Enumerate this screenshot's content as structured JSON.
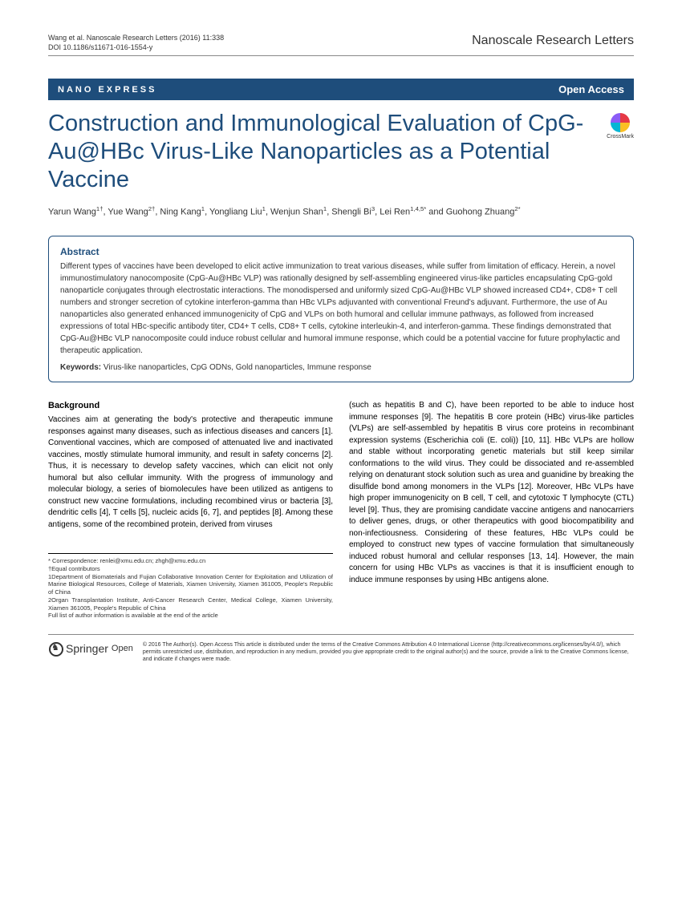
{
  "header": {
    "citation_line1": "Wang et al. Nanoscale Research Letters  (2016) 11:338",
    "citation_line2": "DOI 10.1186/s11671-016-1554-y",
    "journal": "Nanoscale Research Letters"
  },
  "banner": {
    "category": "NANO EXPRESS",
    "access": "Open Access"
  },
  "crossmark": "CrossMark",
  "title": "Construction and Immunological Evaluation of CpG-Au@HBc Virus-Like Nanoparticles as a Potential Vaccine",
  "authors_html": "Yarun Wang<sup>1†</sup>, Yue Wang<sup>2†</sup>, Ning Kang<sup>1</sup>, Yongliang Liu<sup>1</sup>, Wenjun Shan<sup>1</sup>, Shengli Bi<sup>3</sup>, Lei Ren<sup>1,4,5*</sup> and Guohong Zhuang<sup>2*</sup>",
  "abstract": {
    "heading": "Abstract",
    "text": "Different types of vaccines have been developed to elicit active immunization to treat various diseases, while suffer from limitation of efficacy. Herein, a novel immunostimulatory nanocomposite (CpG-Au@HBc VLP) was rationally designed by self-assembling engineered virus-like particles encapsulating CpG-gold nanoparticle conjugates through electrostatic interactions. The monodispersed and uniformly sized CpG-Au@HBc VLP showed increased CD4+, CD8+ T cell numbers and stronger secretion of cytokine interferon-gamma than HBc VLPs adjuvanted with conventional Freund's adjuvant. Furthermore, the use of Au nanoparticles also generated enhanced immunogenicity of CpG and VLPs on both humoral and cellular immune pathways, as followed from increased expressions of total HBc-specific antibody titer, CD4+ T cells, CD8+ T cells, cytokine interleukin-4, and interferon-gamma. These findings demonstrated that CpG-Au@HBc VLP nanocomposite could induce robust cellular and humoral immune response, which could be a potential vaccine for future prophylactic and therapeutic application.",
    "keywords_label": "Keywords:",
    "keywords": " Virus-like nanoparticles, CpG ODNs, Gold nanoparticles, Immune response"
  },
  "body": {
    "section_heading": "Background",
    "col1_p1": "Vaccines aim at generating the body's protective and therapeutic immune responses against many diseases, such as infectious diseases and cancers [1]. Conventional vaccines, which are composed of attenuated live and inactivated vaccines, mostly stimulate humoral immunity, and result in safety concerns [2]. Thus, it is necessary to develop safety vaccines, which can elicit not only humoral but also cellular immunity. With the progress of immunology and molecular biology, a series of biomolecules have been utilized as antigens to construct new vaccine formulations, including recombined virus or bacteria [3], dendritic cells [4], T cells [5], nucleic acids [6, 7], and peptides [8]. Among these antigens, some of the recombined protein, derived from viruses",
    "col2_p1": "(such as hepatitis B and C), have been reported to be able to induce host immune responses [9]. The hepatitis B core protein (HBc) virus-like particles (VLPs) are self-assembled by hepatitis B virus core proteins in recombinant expression systems (Escherichia coli (E. coli)) [10, 11]. HBc VLPs are hollow and stable without incorporating genetic materials but still keep similar conformations to the wild virus. They could be dissociated and re-assembled relying on denaturant stock solution such as urea and guanidine by breaking the disulfide bond among monomers in the VLPs [12]. Moreover, HBc VLPs have high proper immunogenicity on B cell, T cell, and cytotoxic T lymphocyte (CTL) level [9]. Thus, they are promising candidate vaccine antigens and nanocarriers to deliver genes, drugs, or other therapeutics with good biocompatibility and non-infectiousness. Considering of these features, HBc VLPs could be employed to construct new types of vaccine formulation that simultaneously induced robust humoral and cellular responses [13, 14]. However, the main concern for using HBc VLPs as vaccines is that it is insufficient enough to induce immune responses by using HBc antigens alone."
  },
  "footnotes": {
    "correspondence": "* Correspondence: renlei@xmu.edu.cn; zhgh@xmu.edu.cn",
    "equal": "†Equal contributors",
    "aff1": "1Department of Biomaterials and Fujian Collaborative Innovation Center for Exploitation and Utilization of Marine Biological Resources, College of Materials, Xiamen University, Xiamen 361005, People's Republic of China",
    "aff2": "2Organ Transplantation Institute, Anti-Cancer Research Center, Medical College, Xiamen University, Xiamen 361005, People's Republic of China",
    "full_list": "Full list of author information is available at the end of the article"
  },
  "footer": {
    "publisher": "Springer",
    "sub": "Open",
    "license": "© 2016 The Author(s). Open Access This article is distributed under the terms of the Creative Commons Attribution 4.0 International License (http://creativecommons.org/licenses/by/4.0/), which permits unrestricted use, distribution, and reproduction in any medium, provided you give appropriate credit to the original author(s) and the source, provide a link to the Creative Commons license, and indicate if changes were made."
  }
}
